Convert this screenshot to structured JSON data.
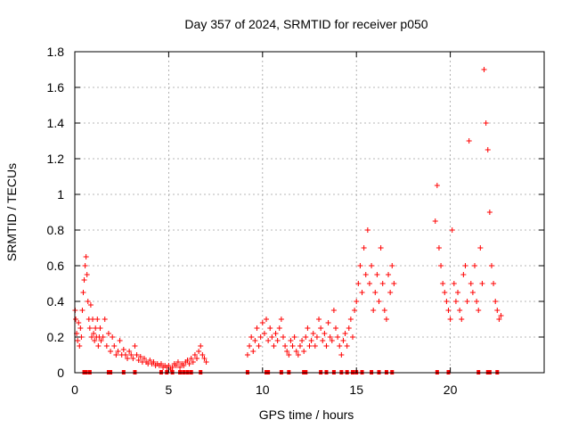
{
  "colors": {
    "background": "#ffffff",
    "series": "#ff0000",
    "grid": "#a0a0a0",
    "frame": "#000000"
  },
  "chart_data": {
    "type": "scatter",
    "marker": "plus",
    "title": "Day 357 of 2024, SRMTID for receiver p050",
    "xlabel": "GPS time / hours",
    "ylabel": "SRMTID / TECUs",
    "xlim": [
      0,
      25
    ],
    "ylim": [
      0,
      1.8
    ],
    "x_ticks": [
      0,
      5,
      10,
      15,
      20
    ],
    "x_tick_labels": [
      "0",
      "5",
      "10",
      "15",
      "20"
    ],
    "y_ticks": [
      0,
      0.2,
      0.4,
      0.6,
      0.8,
      1,
      1.2,
      1.4,
      1.6,
      1.8
    ],
    "y_tick_labels": [
      "0",
      "0.2",
      "0.4",
      "0.6",
      "0.8",
      "1",
      "1.2",
      "1.4",
      "1.6",
      "1.8"
    ],
    "grid": true,
    "legend": "none",
    "series": [
      {
        "name": "SRMTID",
        "x": [
          0.02,
          0.05,
          0.1,
          0.15,
          0.2,
          0.25,
          0.3,
          0.35,
          0.4,
          0.45,
          0.5,
          0.55,
          0.6,
          0.65,
          0.7,
          0.75,
          0.8,
          0.85,
          0.9,
          0.95,
          1.0,
          1.05,
          1.1,
          1.15,
          1.2,
          1.25,
          1.3,
          1.35,
          1.4,
          1.5,
          1.6,
          1.7,
          1.8,
          1.9,
          2.0,
          2.1,
          2.2,
          2.3,
          2.4,
          2.5,
          2.6,
          2.7,
          2.8,
          2.9,
          3.0,
          3.1,
          3.2,
          3.3,
          3.4,
          3.5,
          3.6,
          3.7,
          3.8,
          3.9,
          4.0,
          4.1,
          4.2,
          4.3,
          4.4,
          4.5,
          4.6,
          4.7,
          4.8,
          4.9,
          5.0,
          5.1,
          5.2,
          5.3,
          5.4,
          5.5,
          5.6,
          5.7,
          5.8,
          5.9,
          6.0,
          6.1,
          6.2,
          6.3,
          6.4,
          6.5,
          6.6,
          6.7,
          6.8,
          6.9,
          7.0,
          9.2,
          9.3,
          9.4,
          9.5,
          9.6,
          9.7,
          9.8,
          9.9,
          10.0,
          10.1,
          10.2,
          10.3,
          10.4,
          10.5,
          10.6,
          10.7,
          10.8,
          10.9,
          11.0,
          11.1,
          11.2,
          11.3,
          11.4,
          11.5,
          11.6,
          11.7,
          11.8,
          11.9,
          12.0,
          12.1,
          12.2,
          12.3,
          12.4,
          12.5,
          12.6,
          12.7,
          12.8,
          12.9,
          13.0,
          13.1,
          13.2,
          13.3,
          13.4,
          13.5,
          13.6,
          13.7,
          13.8,
          13.9,
          14.0,
          14.1,
          14.2,
          14.3,
          14.4,
          14.5,
          14.6,
          14.7,
          14.8,
          14.9,
          15.0,
          15.1,
          15.2,
          15.3,
          15.4,
          15.5,
          15.6,
          15.7,
          15.8,
          15.9,
          16.0,
          16.1,
          16.2,
          16.3,
          16.4,
          16.5,
          16.6,
          16.7,
          16.8,
          16.9,
          17.0,
          19.2,
          19.3,
          19.4,
          19.5,
          19.6,
          19.7,
          19.8,
          19.9,
          20.0,
          20.1,
          20.2,
          20.3,
          20.4,
          20.5,
          20.6,
          20.7,
          20.8,
          20.9,
          21.0,
          21.1,
          21.2,
          21.3,
          21.4,
          21.5,
          21.6,
          21.7,
          21.8,
          21.9,
          22.0,
          22.1,
          22.2,
          22.3,
          22.4,
          22.5,
          22.6,
          22.7
        ],
        "y": [
          0.35,
          0.3,
          0.22,
          0.18,
          0.28,
          0.15,
          0.25,
          0.2,
          0.35,
          0.45,
          0.52,
          0.6,
          0.65,
          0.55,
          0.4,
          0.3,
          0.25,
          0.38,
          0.2,
          0.3,
          0.22,
          0.18,
          0.25,
          0.2,
          0.3,
          0.15,
          0.2,
          0.25,
          0.18,
          0.2,
          0.3,
          0.15,
          0.22,
          0.12,
          0.2,
          0.15,
          0.1,
          0.12,
          0.18,
          0.1,
          0.13,
          0.1,
          0.08,
          0.12,
          0.1,
          0.08,
          0.15,
          0.1,
          0.07,
          0.09,
          0.06,
          0.08,
          0.06,
          0.05,
          0.07,
          0.05,
          0.06,
          0.04,
          0.05,
          0.04,
          0.05,
          0.03,
          0.04,
          0.03,
          0.04,
          0.02,
          0.03,
          0.05,
          0.04,
          0.06,
          0.03,
          0.05,
          0.04,
          0.06,
          0.07,
          0.05,
          0.08,
          0.06,
          0.1,
          0.08,
          0.12,
          0.15,
          0.1,
          0.08,
          0.06,
          0.1,
          0.15,
          0.2,
          0.12,
          0.18,
          0.25,
          0.15,
          0.2,
          0.28,
          0.22,
          0.3,
          0.18,
          0.25,
          0.2,
          0.15,
          0.22,
          0.18,
          0.25,
          0.3,
          0.2,
          0.15,
          0.12,
          0.1,
          0.18,
          0.15,
          0.2,
          0.12,
          0.1,
          0.15,
          0.18,
          0.12,
          0.2,
          0.25,
          0.15,
          0.18,
          0.22,
          0.15,
          0.2,
          0.3,
          0.25,
          0.18,
          0.22,
          0.15,
          0.28,
          0.2,
          0.18,
          0.35,
          0.25,
          0.2,
          0.15,
          0.1,
          0.18,
          0.22,
          0.15,
          0.25,
          0.3,
          0.2,
          0.35,
          0.4,
          0.5,
          0.6,
          0.45,
          0.7,
          0.55,
          0.8,
          0.5,
          0.6,
          0.35,
          0.45,
          0.55,
          0.4,
          0.7,
          0.5,
          0.35,
          0.3,
          0.55,
          0.45,
          0.6,
          0.5,
          0.85,
          1.05,
          0.7,
          0.6,
          0.5,
          0.45,
          0.4,
          0.35,
          0.3,
          0.8,
          0.5,
          0.4,
          0.45,
          0.35,
          0.3,
          0.55,
          0.6,
          0.4,
          1.3,
          0.5,
          0.45,
          0.6,
          0.4,
          0.35,
          0.7,
          0.5,
          1.7,
          1.4,
          1.25,
          0.9,
          0.6,
          0.5,
          0.4,
          0.35,
          0.3,
          0.32
        ]
      }
    ],
    "rug_marks_x": [
      0.5,
      0.6,
      0.8,
      1.8,
      1.9,
      2.6,
      3.2,
      4.6,
      4.9,
      5.2,
      5.6,
      5.8,
      6.0,
      6.2,
      6.7,
      9.2,
      10.2,
      10.3,
      11.0,
      11.4,
      12.2,
      12.3,
      13.1,
      13.4,
      13.8,
      14.2,
      14.5,
      14.8,
      15.0,
      15.3,
      15.8,
      16.2,
      16.6,
      16.9,
      19.3,
      19.9,
      21.5,
      22.0,
      22.1,
      22.5
    ]
  }
}
